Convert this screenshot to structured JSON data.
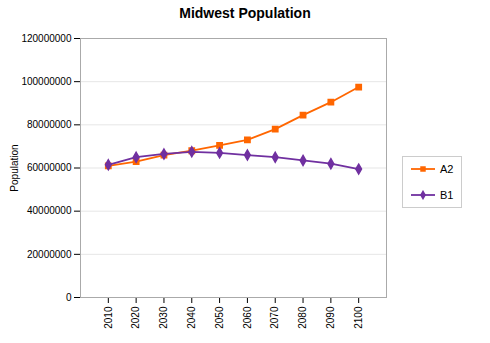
{
  "chart_data": {
    "type": "line",
    "title": "Midwest Population",
    "ylabel": "Population",
    "x": [
      2010,
      2020,
      2030,
      2040,
      2050,
      2060,
      2070,
      2080,
      2090,
      2100
    ],
    "series": [
      {
        "name": "A2",
        "color": "#FF6600",
        "marker": "square",
        "values": [
          61000000,
          63000000,
          66000000,
          68000000,
          70500000,
          73000000,
          78000000,
          84500000,
          90500000,
          97500000
        ]
      },
      {
        "name": "B1",
        "color": "#7030A0",
        "marker": "diamond",
        "values": [
          61500000,
          65000000,
          66500000,
          67500000,
          67000000,
          66000000,
          65000000,
          63500000,
          62000000,
          59500000
        ]
      }
    ],
    "xlim": [
      2000,
      2110
    ],
    "xticks": [
      2010,
      2020,
      2030,
      2040,
      2050,
      2060,
      2070,
      2080,
      2090,
      2100
    ],
    "ylim": [
      0,
      120000000
    ],
    "yticks": [
      0,
      20000000,
      40000000,
      60000000,
      80000000,
      100000000,
      120000000
    ],
    "grid": true,
    "legend": "right"
  }
}
